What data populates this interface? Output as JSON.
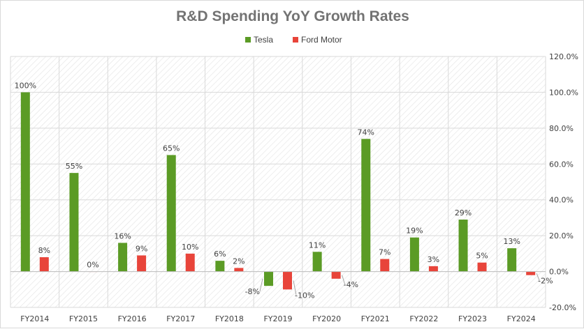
{
  "chart_data": {
    "type": "bar",
    "title": "R&D Spending YoY Growth Rates",
    "categories": [
      "FY2014",
      "FY2015",
      "FY2016",
      "FY2017",
      "FY2018",
      "FY2019",
      "FY2020",
      "FY2021",
      "FY2022",
      "FY2023",
      "FY2024"
    ],
    "series": [
      {
        "name": "Tesla",
        "color": "#5b9b25",
        "values": [
          100,
          55,
          16,
          65,
          6,
          -8,
          11,
          74,
          19,
          29,
          13
        ]
      },
      {
        "name": "Ford Motor",
        "color": "#e8443a",
        "values": [
          8,
          0,
          9,
          10,
          2,
          -10,
          -4,
          7,
          3,
          5,
          -2
        ]
      }
    ],
    "ylim": [
      -20,
      120
    ],
    "ytick_step": 20,
    "y_axis_side": "right",
    "legend_position": "top-center",
    "value_format": "percent",
    "grid": true,
    "background_pattern": "diagonal-hatch"
  }
}
